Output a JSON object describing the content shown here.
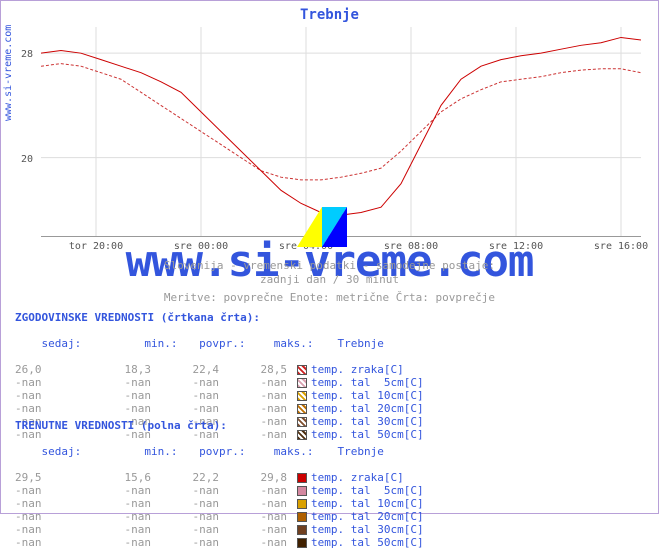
{
  "title": "Trebnje",
  "source_label": "www.si-vreme.com",
  "watermark": "www.si-vreme.com",
  "chart": {
    "type": "line",
    "ylim": [
      14,
      30
    ],
    "yticks": [
      20,
      28
    ],
    "xticks": [
      "tor 20:00",
      "sre 00:00",
      "sre 04:00",
      "sre 08:00",
      "sre 12:00",
      "sre 16:00"
    ],
    "grid_color": "#dddddd",
    "series": [
      {
        "name": "zgodovinske",
        "style": "dashed",
        "color": "#cc3333",
        "width": 1,
        "points": [
          [
            0,
            27.0
          ],
          [
            20,
            27.2
          ],
          [
            40,
            27.0
          ],
          [
            60,
            26.5
          ],
          [
            80,
            26.0
          ],
          [
            100,
            25.0
          ],
          [
            120,
            24.0
          ],
          [
            140,
            23.0
          ],
          [
            160,
            22.0
          ],
          [
            180,
            21.0
          ],
          [
            200,
            20.0
          ],
          [
            220,
            19.0
          ],
          [
            240,
            18.5
          ],
          [
            260,
            18.3
          ],
          [
            280,
            18.3
          ],
          [
            300,
            18.5
          ],
          [
            320,
            18.8
          ],
          [
            340,
            19.2
          ],
          [
            360,
            20.5
          ],
          [
            380,
            22.0
          ],
          [
            400,
            23.5
          ],
          [
            420,
            24.5
          ],
          [
            440,
            25.2
          ],
          [
            460,
            25.8
          ],
          [
            480,
            26.0
          ],
          [
            500,
            26.2
          ],
          [
            520,
            26.5
          ],
          [
            540,
            26.7
          ],
          [
            560,
            26.8
          ],
          [
            580,
            26.8
          ],
          [
            600,
            26.5
          ]
        ]
      },
      {
        "name": "trenutne",
        "style": "solid",
        "color": "#cc0000",
        "width": 1,
        "points": [
          [
            0,
            28.0
          ],
          [
            20,
            28.2
          ],
          [
            40,
            28.0
          ],
          [
            60,
            27.5
          ],
          [
            80,
            27.0
          ],
          [
            100,
            26.5
          ],
          [
            120,
            25.8
          ],
          [
            140,
            25.0
          ],
          [
            160,
            23.5
          ],
          [
            180,
            22.0
          ],
          [
            200,
            20.5
          ],
          [
            220,
            19.0
          ],
          [
            240,
            17.5
          ],
          [
            260,
            16.5
          ],
          [
            280,
            15.8
          ],
          [
            300,
            15.6
          ],
          [
            320,
            15.8
          ],
          [
            340,
            16.2
          ],
          [
            360,
            18.0
          ],
          [
            380,
            21.0
          ],
          [
            400,
            24.0
          ],
          [
            420,
            26.0
          ],
          [
            440,
            27.0
          ],
          [
            460,
            27.5
          ],
          [
            480,
            27.8
          ],
          [
            500,
            28.0
          ],
          [
            520,
            28.3
          ],
          [
            540,
            28.6
          ],
          [
            560,
            28.8
          ],
          [
            580,
            29.2
          ],
          [
            600,
            29.0
          ]
        ]
      }
    ]
  },
  "watermark_logo": {
    "colors": [
      "#ffff00",
      "#00ccff",
      "#0000ff"
    ]
  },
  "captions": {
    "line1": "Slovenija - vremenski podatki - samodejne postaje:",
    "line2": "zadnji dan / 30 minut",
    "line3": "Meritve: povprečne  Enote: metrične  Črta: povprečje"
  },
  "columns": [
    "sedaj:",
    "min.:",
    "povpr.:",
    "maks.:"
  ],
  "station": "Trebnje",
  "historic": {
    "title": "ZGODOVINSKE VREDNOSTI (črtkana črta):",
    "rows": [
      {
        "vals": [
          "26,0",
          "18,3",
          "22,4",
          "28,5"
        ],
        "swatch": "#cc2222",
        "hatch": true,
        "label": "temp. zraka[C]"
      },
      {
        "vals": [
          "-nan",
          "-nan",
          "-nan",
          "-nan"
        ],
        "swatch": "#d9a0b0",
        "hatch": true,
        "label": "temp. tal  5cm[C]"
      },
      {
        "vals": [
          "-nan",
          "-nan",
          "-nan",
          "-nan"
        ],
        "swatch": "#d9a000",
        "hatch": true,
        "label": "temp. tal 10cm[C]"
      },
      {
        "vals": [
          "-nan",
          "-nan",
          "-nan",
          "-nan"
        ],
        "swatch": "#c07000",
        "hatch": true,
        "label": "temp. tal 20cm[C]"
      },
      {
        "vals": [
          "-nan",
          "-nan",
          "-nan",
          "-nan"
        ],
        "swatch": "#805030",
        "hatch": true,
        "label": "temp. tal 30cm[C]"
      },
      {
        "vals": [
          "-nan",
          "-nan",
          "-nan",
          "-nan"
        ],
        "swatch": "#503010",
        "hatch": true,
        "label": "temp. tal 50cm[C]"
      }
    ]
  },
  "current": {
    "title": "TRENUTNE VREDNOSTI (polna črta):",
    "rows": [
      {
        "vals": [
          "29,5",
          "15,6",
          "22,2",
          "29,8"
        ],
        "swatch": "#cc0000",
        "hatch": false,
        "label": "temp. zraka[C]"
      },
      {
        "vals": [
          "-nan",
          "-nan",
          "-nan",
          "-nan"
        ],
        "swatch": "#d488a0",
        "hatch": false,
        "label": "temp. tal  5cm[C]"
      },
      {
        "vals": [
          "-nan",
          "-nan",
          "-nan",
          "-nan"
        ],
        "swatch": "#d9a000",
        "hatch": false,
        "label": "temp. tal 10cm[C]"
      },
      {
        "vals": [
          "-nan",
          "-nan",
          "-nan",
          "-nan"
        ],
        "swatch": "#b06000",
        "hatch": false,
        "label": "temp. tal 20cm[C]"
      },
      {
        "vals": [
          "-nan",
          "-nan",
          "-nan",
          "-nan"
        ],
        "swatch": "#704020",
        "hatch": false,
        "label": "temp. tal 30cm[C]"
      },
      {
        "vals": [
          "-nan",
          "-nan",
          "-nan",
          "-nan"
        ],
        "swatch": "#402000",
        "hatch": false,
        "label": "temp. tal 50cm[C]"
      }
    ]
  }
}
